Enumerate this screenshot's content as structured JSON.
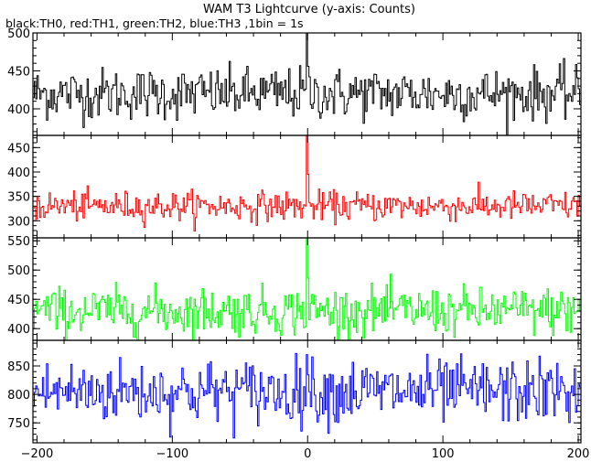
{
  "chart_data": {
    "type": "line",
    "title": "WAM T3 Lightcurve (y-axis: Counts)",
    "subtitle": "black:TH0, red:TH1, green:TH2, blue:TH3 ,1bin = 1s",
    "xlim": [
      -203,
      202
    ],
    "x_ticks": [
      -200,
      -100,
      0,
      100,
      200
    ],
    "panels": [
      {
        "name": "TH0",
        "color": "#000000",
        "ylim": [
          365,
          500
        ],
        "y_ticks": [
          400,
          450,
          500
        ],
        "mean": 420,
        "sd": 17,
        "peak": {
          "x": -1,
          "y": 500
        }
      },
      {
        "name": "TH1",
        "color": "#ff0000",
        "ylim": [
          265,
          475
        ],
        "y_ticks": [
          300,
          350,
          400,
          450
        ],
        "mean": 330,
        "sd": 15,
        "peak": {
          "x": -1,
          "y": 475
        }
      },
      {
        "name": "TH2",
        "color": "#00ff00",
        "ylim": [
          380,
          555
        ],
        "y_ticks": [
          400,
          450,
          500,
          550
        ],
        "mean": 430,
        "sd": 20,
        "peak": {
          "x": -1,
          "y": 555
        }
      },
      {
        "name": "TH3",
        "color": "#0000ff",
        "ylim": [
          715,
          895
        ],
        "y_ticks": [
          750,
          800,
          850
        ],
        "mean": 805,
        "sd": 28,
        "peak": {
          "x": -1,
          "y": 870
        }
      }
    ]
  }
}
